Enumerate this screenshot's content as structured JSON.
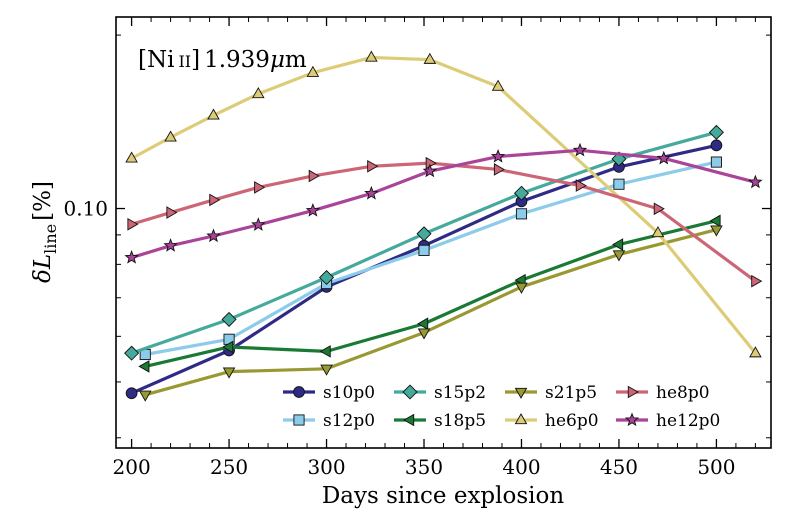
{
  "chart_data": {
    "type": "line",
    "annotation": "[Ni II] 1.939μm",
    "annotation_parts": {
      "prefix": "[Ni",
      "roman": "II",
      "suffix": "]",
      "value": "1.939",
      "unit_mu": "μ",
      "unit_m": "m"
    },
    "xlabel": "Days since explosion",
    "ylabel": "δL_line[%]",
    "ylabel_parts": {
      "delta": "δ",
      "L": "L",
      "sub": "line",
      "unit": "[%]"
    },
    "y_scale": "log",
    "xlim": [
      192,
      528
    ],
    "ylim": [
      0.0384,
      0.215
    ],
    "x_ticks": [
      200,
      250,
      300,
      350,
      400,
      450,
      500
    ],
    "x_tick_labels": [
      "200",
      "250",
      "300",
      "350",
      "400",
      "450",
      "500"
    ],
    "y_ticks": [
      0.1
    ],
    "y_tick_labels": [
      "0.10"
    ],
    "legend_position": "lower-right",
    "legend_columns": 4,
    "series": [
      {
        "name": "s10p0",
        "color": "#2e2a85",
        "marker": "circle",
        "x": [
          200,
          250,
          300,
          350,
          400,
          450,
          500
        ],
        "y": [
          0.0478,
          0.0567,
          0.0731,
          0.0862,
          0.1029,
          0.1181,
          0.1287
        ]
      },
      {
        "name": "s12p0",
        "color": "#8ccbea",
        "marker": "square",
        "x": [
          207,
          250,
          300,
          350,
          400,
          450,
          500
        ],
        "y": [
          0.0558,
          0.0593,
          0.0741,
          0.0846,
          0.0979,
          0.1102,
          0.1204
        ]
      },
      {
        "name": "s15p2",
        "color": "#45a99b",
        "marker": "diamond",
        "x": [
          200,
          250,
          300,
          350,
          400,
          450,
          500
        ],
        "y": [
          0.0561,
          0.0642,
          0.0759,
          0.0904,
          0.1063,
          0.1219,
          0.1356
        ]
      },
      {
        "name": "s18p5",
        "color": "#1a7a35",
        "marker": "triangle-left",
        "x": [
          207,
          250,
          300,
          350,
          400,
          450,
          500
        ],
        "y": [
          0.0532,
          0.0575,
          0.0565,
          0.0631,
          0.0751,
          0.0866,
          0.0952
        ]
      },
      {
        "name": "s21p5",
        "color": "#999933",
        "marker": "triangle-down",
        "x": [
          207,
          250,
          300,
          350,
          400,
          450,
          500
        ],
        "y": [
          0.0475,
          0.0521,
          0.0527,
          0.0609,
          0.0731,
          0.0832,
          0.0919
        ]
      },
      {
        "name": "he6p0",
        "color": "#ddcc77",
        "marker": "triangle-up",
        "x": [
          200,
          220,
          242,
          265,
          293,
          323,
          353,
          388,
          470,
          520
        ],
        "y": [
          0.1222,
          0.1329,
          0.1451,
          0.1581,
          0.1721,
          0.1829,
          0.1813,
          0.1628,
          0.0907,
          0.0561
        ]
      },
      {
        "name": "he8p0",
        "color": "#cc6677",
        "marker": "triangle-right",
        "x": [
          200,
          220,
          242,
          265,
          293,
          323,
          353,
          388,
          430,
          470,
          520
        ],
        "y": [
          0.0939,
          0.0984,
          0.1035,
          0.1088,
          0.1139,
          0.1184,
          0.1199,
          0.1169,
          0.1096,
          0.0999,
          0.0748
        ]
      },
      {
        "name": "he12p0",
        "color": "#aa4499",
        "marker": "star",
        "x": [
          200,
          220,
          242,
          265,
          293,
          323,
          353,
          388,
          430,
          473,
          520
        ],
        "y": [
          0.0822,
          0.0862,
          0.0896,
          0.0937,
          0.0992,
          0.1062,
          0.1161,
          0.1231,
          0.1262,
          0.1222,
          0.1111
        ]
      }
    ]
  }
}
